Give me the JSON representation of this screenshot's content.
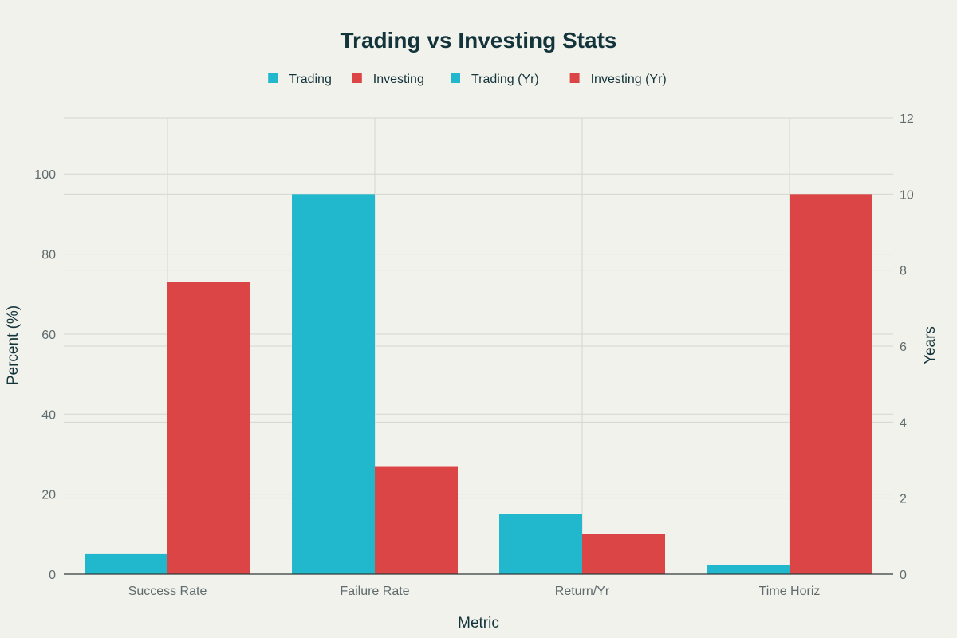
{
  "chart_data": {
    "type": "bar",
    "title": "Trading vs Investing Stats",
    "xlabel": "Metric",
    "ylabel": "Percent (%)",
    "y2label": "Years",
    "categories": [
      "Success Rate",
      "Failure Rate",
      "Return/Yr",
      "Time Horiz"
    ],
    "ylim": [
      0,
      114
    ],
    "y2lim": [
      0,
      12
    ],
    "yticks": [
      0,
      20,
      40,
      60,
      80,
      100
    ],
    "y2ticks": [
      0,
      2,
      4,
      6,
      8,
      10,
      12
    ],
    "legend_position": "top-center",
    "grid": true,
    "series": [
      {
        "name": "Trading",
        "axis": "left",
        "color": "#21b8cd",
        "values": [
          5,
          95,
          15,
          null
        ]
      },
      {
        "name": "Investing",
        "axis": "left",
        "color": "#db4545",
        "values": [
          73,
          27,
          10,
          null
        ]
      },
      {
        "name": "Trading (Yr)",
        "axis": "right",
        "color": "#21b8cd",
        "values": [
          null,
          null,
          null,
          0.25
        ]
      },
      {
        "name": "Investing (Yr)",
        "axis": "right",
        "color": "#db4545",
        "values": [
          null,
          null,
          null,
          10
        ]
      }
    ]
  },
  "style": {
    "background": "#f2f2ec",
    "text_color": "#13343b",
    "tick_color": "#5f6b6d",
    "grid_color": "#d6d6d0",
    "axis_color": "#2f3a3c"
  }
}
